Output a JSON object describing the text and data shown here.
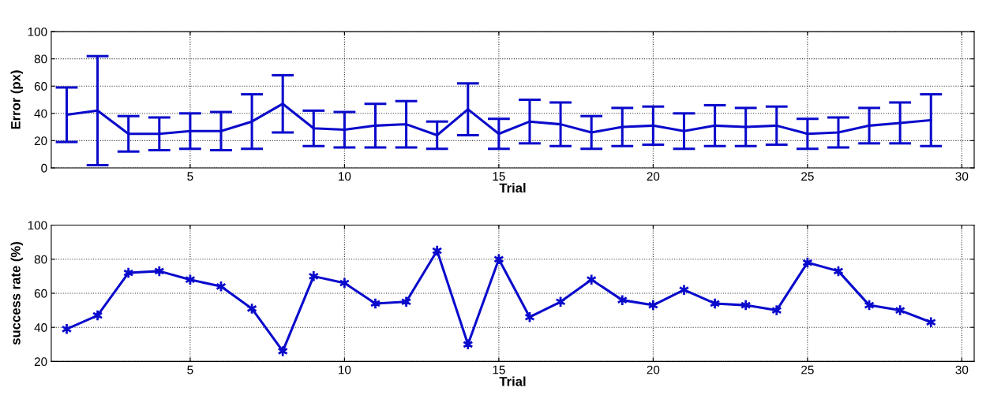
{
  "chart_data": [
    {
      "type": "line",
      "xlabel": "Trial",
      "ylabel": "Error (px)",
      "x": [
        1,
        2,
        3,
        4,
        5,
        6,
        7,
        8,
        9,
        10,
        11,
        12,
        13,
        14,
        15,
        16,
        17,
        18,
        19,
        20,
        21,
        22,
        23,
        24,
        25,
        26,
        27,
        28,
        29
      ],
      "series": [
        {
          "color": "#0a0acc",
          "values": [
            39,
            42,
            25,
            25,
            27,
            27,
            34,
            47,
            29,
            28,
            31,
            32,
            24,
            43,
            25,
            34,
            32,
            26,
            30,
            31,
            27,
            31,
            30,
            31,
            25,
            26,
            31,
            33,
            35
          ],
          "errors": [
            20,
            40,
            13,
            12,
            13,
            14,
            20,
            21,
            13,
            13,
            16,
            17,
            10,
            19,
            11,
            16,
            16,
            12,
            14,
            14,
            13,
            15,
            14,
            14,
            11,
            11,
            13,
            15,
            19
          ]
        }
      ],
      "xlim": [
        0.5,
        30.4
      ],
      "xticks": [
        5,
        10,
        15,
        20,
        25,
        30
      ],
      "ylim": [
        0,
        100
      ],
      "yticks": [
        0,
        20,
        40,
        60,
        80,
        100
      ],
      "grid": true,
      "marker": "none",
      "line_style": "solid"
    },
    {
      "type": "line",
      "xlabel": "Trial",
      "ylabel": "success rate (%)",
      "x": [
        1,
        2,
        3,
        4,
        5,
        6,
        7,
        8,
        9,
        10,
        11,
        12,
        13,
        14,
        15,
        16,
        17,
        18,
        19,
        20,
        21,
        22,
        23,
        24,
        25,
        26,
        27,
        28,
        29
      ],
      "series": [
        {
          "color": "#0a0acc",
          "values": [
            39,
            47,
            72,
            73,
            68,
            64,
            51,
            26,
            70,
            66,
            54,
            55,
            85,
            30,
            80,
            46,
            55,
            68,
            56,
            53,
            62,
            54,
            53,
            50,
            78,
            73,
            53,
            50,
            43
          ]
        }
      ],
      "xlim": [
        0.5,
        30.4
      ],
      "xticks": [
        5,
        10,
        15,
        20,
        25,
        30
      ],
      "ylim": [
        20,
        100
      ],
      "yticks": [
        20,
        40,
        60,
        80,
        100
      ],
      "grid": true,
      "marker": "cross",
      "line_style": "solid"
    }
  ]
}
